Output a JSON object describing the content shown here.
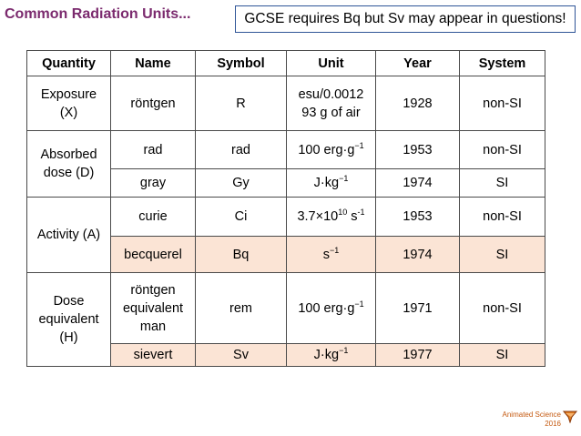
{
  "title": "Common Radiation Units...",
  "note": "GCSE requires Bq  but Sv may appear in questions!",
  "table": {
    "headers": [
      "Quantity",
      "Name",
      "Symbol",
      "Unit",
      "Year",
      "System"
    ],
    "quantities": {
      "exposure": [
        "Exposure",
        "(X)"
      ],
      "absorbed": [
        "Absorbed",
        "dose (D)"
      ],
      "activity": "Activity (A)",
      "dose_equivalent": [
        "Dose",
        "equivalent",
        "(H)"
      ]
    },
    "rows": {
      "rontgen": {
        "name": "röntgen",
        "symbol": "R",
        "unit": [
          "esu/0.0012",
          "93 g of air"
        ],
        "year": "1928",
        "system": "non-SI"
      },
      "rad": {
        "name": "rad",
        "symbol": "rad",
        "unit_base": "100 erg·g",
        "unit_exp": "−1",
        "year": "1953",
        "system": "non-SI"
      },
      "gray": {
        "name": "gray",
        "symbol": "Gy",
        "unit_base": "J·kg",
        "unit_exp": "−1",
        "year": "1974",
        "system": "SI"
      },
      "curie": {
        "name": "curie",
        "symbol": "Ci",
        "unit_a": "3.7×10",
        "unit_exp1": "10",
        "unit_b": " s",
        "unit_exp2": "-1",
        "year": "1953",
        "system": "non-SI"
      },
      "becquerel": {
        "name": "becquerel",
        "symbol": "Bq",
        "unit_base": "s",
        "unit_exp": "−1",
        "year": "1974",
        "system": "SI"
      },
      "rem": {
        "name": [
          "röntgen",
          "equivalent",
          "man"
        ],
        "symbol": "rem",
        "unit_base": "100 erg·g",
        "unit_exp": "−1",
        "year": "1971",
        "system": "non-SI"
      },
      "sievert": {
        "name": "sievert",
        "symbol": "Sv",
        "unit_base": "J·kg",
        "unit_exp": "−1",
        "year": "1977",
        "system": "SI"
      }
    }
  },
  "footer": {
    "line1": "Animated Science",
    "line2": "2016",
    "logo_icon": "bat-wing-logo-icon"
  },
  "colors": {
    "title": "#7b2a6e",
    "highlight": "#fbe4d5",
    "note_border": "#2f5597",
    "footer": "#c55a11"
  }
}
